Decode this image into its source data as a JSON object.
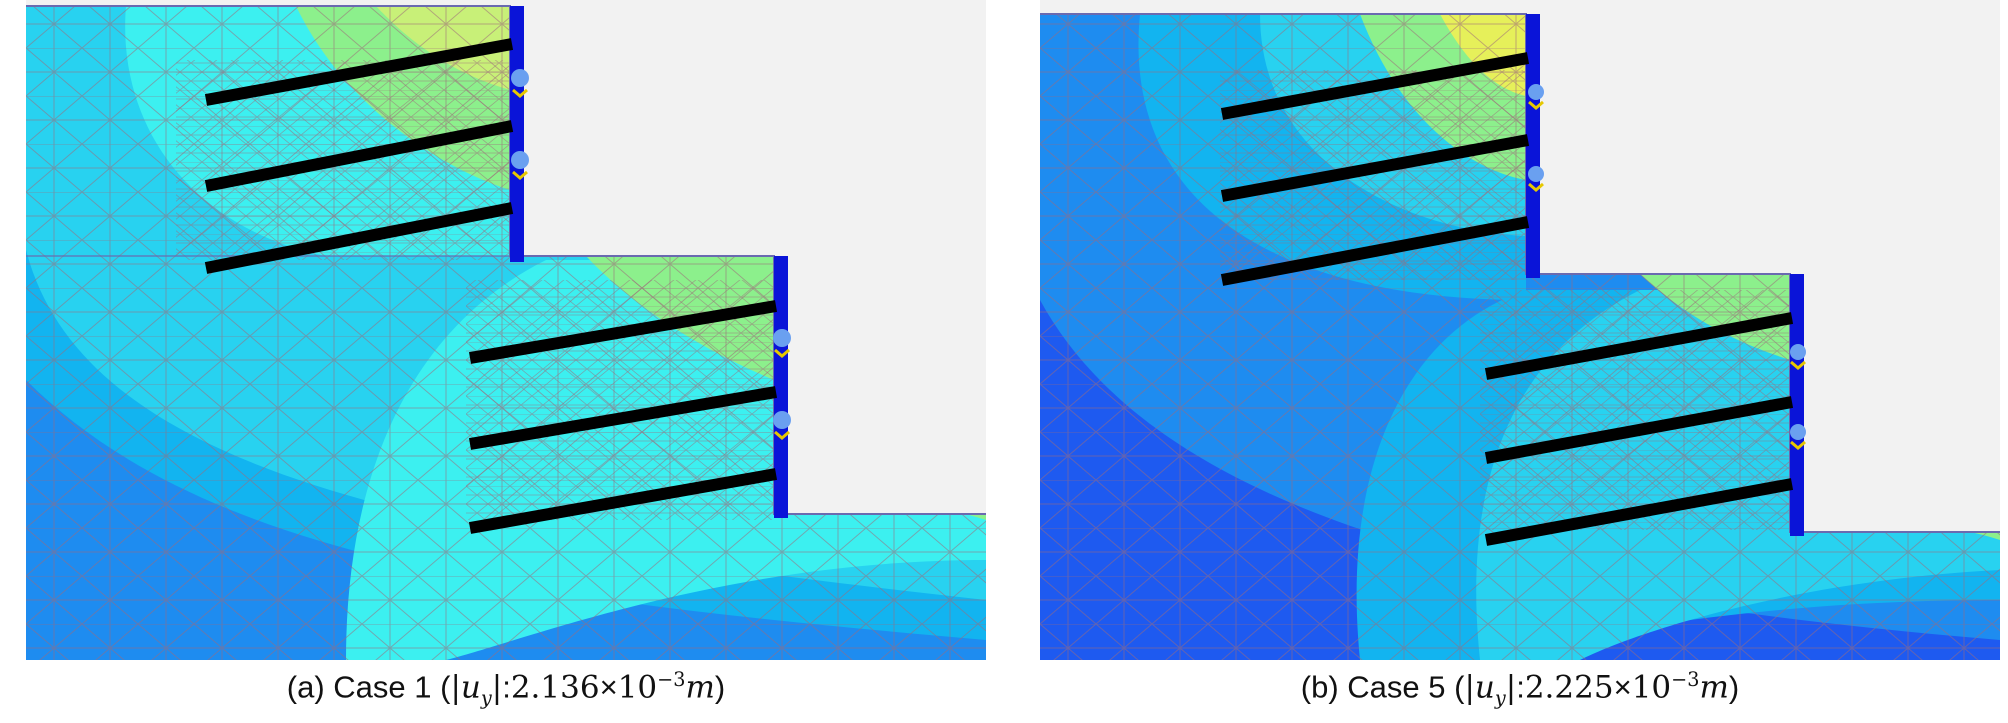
{
  "panels": [
    {
      "id": "a",
      "caption_prefix": "(a) Case 1 (",
      "abs_open": "|",
      "var": "u",
      "sub": "y",
      "abs_close": "|",
      "colon": ":",
      "coeff": "2.136",
      "times": "×",
      "base": "10",
      "exp": "−3",
      "unit": "m",
      "close": ")"
    },
    {
      "id": "b",
      "caption_prefix": "(b) Case 5 (",
      "abs_open": "|",
      "var": "u",
      "sub": "y",
      "abs_close": "|",
      "colon": ":",
      "coeff": "2.225",
      "times": "×",
      "base": "10",
      "exp": "−3",
      "unit": "m",
      "close": ")"
    }
  ],
  "colors": {
    "contour_deep": "#1e5af0",
    "contour_blue": "#1e8cf0",
    "contour_mid": "#12b4f0",
    "contour_light": "#28d2f0",
    "contour_cyan": "#3cf0f0",
    "contour_green": "#8cf08c",
    "contour_yellow": "#e6f05a",
    "wall": "#0a14d8",
    "anchor": "#000000",
    "mesh": "#9c6a7a",
    "excavated": "#f2f2f2"
  }
}
